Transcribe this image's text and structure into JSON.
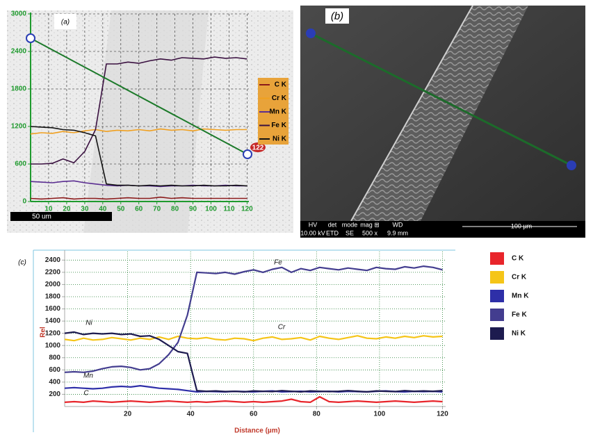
{
  "chart_data": [
    {
      "type": "line",
      "label": "(a)",
      "scale_bar": "50 um",
      "marker": "122",
      "x": [
        0,
        6,
        12,
        18,
        24,
        30,
        36,
        42,
        48,
        54,
        60,
        66,
        72,
        78,
        84,
        90,
        96,
        102,
        108,
        114,
        120
      ],
      "xlim": [
        0,
        121
      ],
      "ylim": [
        0,
        3000
      ],
      "xticks": [
        10,
        20,
        30,
        40,
        50,
        60,
        70,
        80,
        90,
        100,
        110,
        120
      ],
      "yticks": [
        0,
        600,
        1200,
        1800,
        2400,
        3000
      ],
      "grid": true,
      "series": [
        {
          "name": "C K",
          "color": "#8b1a1a",
          "values": [
            50,
            40,
            50,
            60,
            40,
            50,
            50,
            40,
            50,
            60,
            50,
            50,
            70,
            50,
            60,
            50,
            50,
            50,
            50,
            50,
            50
          ]
        },
        {
          "name": "Cr K",
          "color": "#f0a020",
          "values": [
            1080,
            1100,
            1090,
            1120,
            1100,
            1130,
            1150,
            1120,
            1140,
            1130,
            1150,
            1130,
            1160,
            1140,
            1150,
            1130,
            1160,
            1150,
            1140,
            1150,
            1150
          ]
        },
        {
          "name": "Mn K",
          "color": "#5a2d91",
          "values": [
            320,
            310,
            300,
            320,
            330,
            300,
            280,
            260,
            250,
            260,
            250,
            250,
            240,
            250,
            250,
            260,
            250,
            250,
            260,
            250,
            250
          ]
        },
        {
          "name": "Fe K",
          "color": "#3a1040",
          "values": [
            600,
            600,
            610,
            680,
            620,
            800,
            1150,
            2200,
            2200,
            2230,
            2210,
            2250,
            2280,
            2260,
            2300,
            2290,
            2280,
            2310,
            2290,
            2300,
            2280
          ]
        },
        {
          "name": "Ni K",
          "color": "#111111",
          "values": [
            1200,
            1190,
            1180,
            1150,
            1140,
            1100,
            1050,
            280,
            260,
            260,
            250,
            260,
            250,
            260,
            250,
            250,
            260,
            250,
            250,
            260,
            250
          ]
        }
      ]
    },
    {
      "type": "line",
      "label": "(c)",
      "x_label": "Distance (µm)",
      "y_label": "Rel",
      "annotations": [
        "Fe",
        "Cr",
        "Ni",
        "Mn",
        "C"
      ],
      "x": [
        0,
        3,
        6,
        9,
        12,
        15,
        18,
        21,
        24,
        27,
        30,
        33,
        36,
        39,
        42,
        45,
        48,
        51,
        54,
        57,
        60,
        63,
        66,
        69,
        72,
        75,
        78,
        81,
        84,
        87,
        90,
        93,
        96,
        99,
        102,
        105,
        108,
        111,
        114,
        117,
        120
      ],
      "xlim": [
        0,
        121
      ],
      "ylim": [
        0,
        2540
      ],
      "xticks": [
        20,
        40,
        60,
        80,
        100,
        120
      ],
      "yticks": [
        200,
        400,
        600,
        800,
        1000,
        1200,
        1400,
        1600,
        1800,
        2000,
        2200,
        2400
      ],
      "grid": true,
      "series": [
        {
          "name": "C K",
          "color": "#e8252b",
          "values": [
            70,
            80,
            70,
            90,
            80,
            70,
            80,
            90,
            80,
            70,
            80,
            90,
            80,
            70,
            80,
            70,
            80,
            90,
            80,
            70,
            80,
            70,
            80,
            90,
            120,
            80,
            70,
            160,
            80,
            70,
            80,
            90,
            80,
            70,
            80,
            90,
            80,
            70,
            80,
            90,
            80
          ]
        },
        {
          "name": "Cr K",
          "color": "#f5c518",
          "values": [
            1100,
            1080,
            1120,
            1090,
            1100,
            1130,
            1110,
            1090,
            1120,
            1100,
            1140,
            1100,
            1150,
            1120,
            1110,
            1130,
            1100,
            1090,
            1120,
            1110,
            1080,
            1120,
            1140,
            1100,
            1110,
            1130,
            1090,
            1150,
            1120,
            1100,
            1130,
            1160,
            1120,
            1110,
            1140,
            1120,
            1150,
            1130,
            1160,
            1140,
            1150
          ]
        },
        {
          "name": "Mn K",
          "color": "#2e2fa8",
          "values": [
            300,
            310,
            300,
            290,
            300,
            320,
            330,
            320,
            340,
            320,
            300,
            290,
            280,
            260,
            240,
            250,
            245,
            240,
            250,
            245,
            240,
            250,
            255,
            240,
            245,
            250,
            240,
            245,
            250,
            240,
            250,
            245,
            240,
            250,
            255,
            245,
            240,
            250,
            245,
            250,
            240
          ]
        },
        {
          "name": "Fe K",
          "color": "#433d8f",
          "values": [
            560,
            570,
            560,
            580,
            620,
            650,
            660,
            640,
            600,
            620,
            700,
            850,
            1050,
            1500,
            2200,
            2190,
            2180,
            2200,
            2170,
            2210,
            2240,
            2200,
            2250,
            2280,
            2200,
            2260,
            2230,
            2280,
            2260,
            2240,
            2270,
            2250,
            2230,
            2280,
            2260,
            2250,
            2290,
            2270,
            2300,
            2280,
            2240
          ]
        },
        {
          "name": "Ni K",
          "color": "#1d1b4f",
          "values": [
            1200,
            1220,
            1180,
            1200,
            1190,
            1200,
            1180,
            1190,
            1150,
            1160,
            1100,
            1000,
            900,
            870,
            260,
            250,
            255,
            245,
            250,
            240,
            255,
            250,
            245,
            260,
            250,
            240,
            255,
            250,
            245,
            250,
            260,
            250,
            240,
            255,
            250,
            245,
            260,
            250,
            255,
            250,
            260
          ]
        }
      ]
    }
  ],
  "panel_b": {
    "label": "(b)",
    "info_headers": [
      "HV",
      "det",
      "mode",
      "mag ⊞",
      "WD"
    ],
    "info_values": [
      "10.00 kV",
      "ETD",
      "SE",
      "500 x",
      "9.9 mm"
    ],
    "scale_bar": "100 µm"
  }
}
